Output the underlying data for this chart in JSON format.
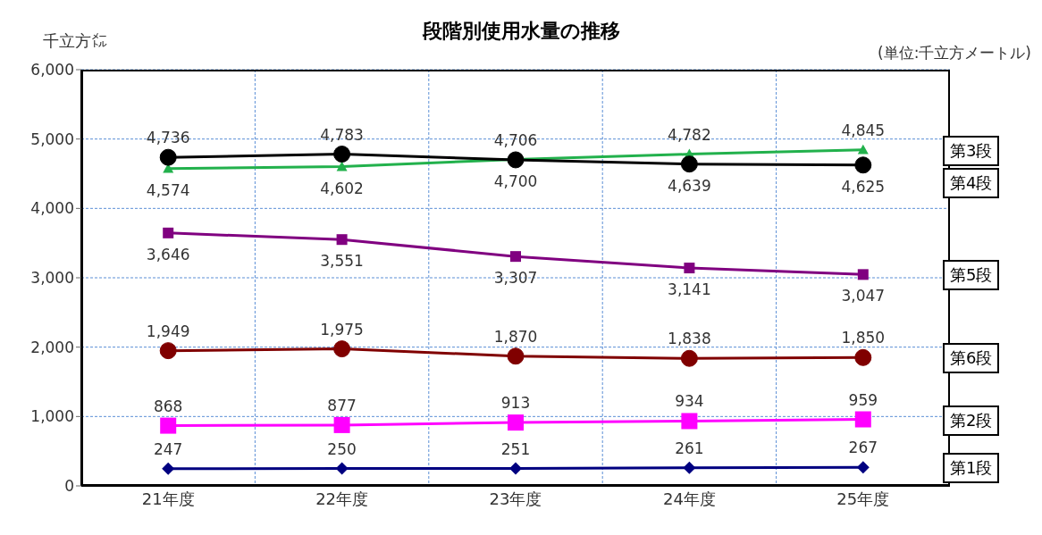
{
  "chart_data": {
    "type": "line",
    "title": "段階別使用水量の推移",
    "ylabel": "千立方㍍",
    "annotations": [
      "(単位:千立方メートル)"
    ],
    "categories": [
      "21年度",
      "22年度",
      "23年度",
      "24年度",
      "25年度"
    ],
    "series": [
      {
        "name": "第3段",
        "color": "#22b14c",
        "marker": "triangle",
        "values": [
          4574,
          4602,
          4706,
          4782,
          4845
        ],
        "value_labels": [
          "4,574",
          "4,602",
          "4,706",
          "4,782",
          "4,845"
        ]
      },
      {
        "name": "第4段",
        "color": "#000000",
        "marker": "circle",
        "values": [
          4736,
          4783,
          4700,
          4639,
          4625
        ],
        "value_labels": [
          "4,736",
          "4,783",
          "4,700",
          "4,639",
          "4,625"
        ]
      },
      {
        "name": "第5段",
        "color": "#800080",
        "marker": "square",
        "values": [
          3646,
          3551,
          3307,
          3141,
          3047
        ],
        "value_labels": [
          "3,646",
          "3,551",
          "3,307",
          "3,141",
          "3,047"
        ]
      },
      {
        "name": "第6段",
        "color": "#800000",
        "marker": "circle",
        "values": [
          1949,
          1975,
          1870,
          1838,
          1850
        ],
        "value_labels": [
          "1,949",
          "1,975",
          "1,870",
          "1,838",
          "1,850"
        ]
      },
      {
        "name": "第2段",
        "color": "#ff00ff",
        "marker": "square",
        "values": [
          868,
          877,
          913,
          934,
          959
        ],
        "value_labels": [
          "868",
          "877",
          "913",
          "934",
          "959"
        ]
      },
      {
        "name": "第1段",
        "color": "#000080",
        "marker": "diamond",
        "values": [
          247,
          250,
          251,
          261,
          267
        ],
        "value_labels": [
          "247",
          "250",
          "251",
          "261",
          "267"
        ]
      }
    ],
    "ylim": [
      0,
      6000
    ],
    "yticks": [
      {
        "value": 0,
        "label": "0"
      },
      {
        "value": 1000,
        "label": "1,000"
      },
      {
        "value": 2000,
        "label": "2,000"
      },
      {
        "value": 3000,
        "label": "3,000"
      },
      {
        "value": 4000,
        "label": "4,000"
      },
      {
        "value": 5000,
        "label": "5,000"
      },
      {
        "value": 6000,
        "label": "6,000"
      }
    ],
    "grid": true,
    "legend": "right"
  }
}
